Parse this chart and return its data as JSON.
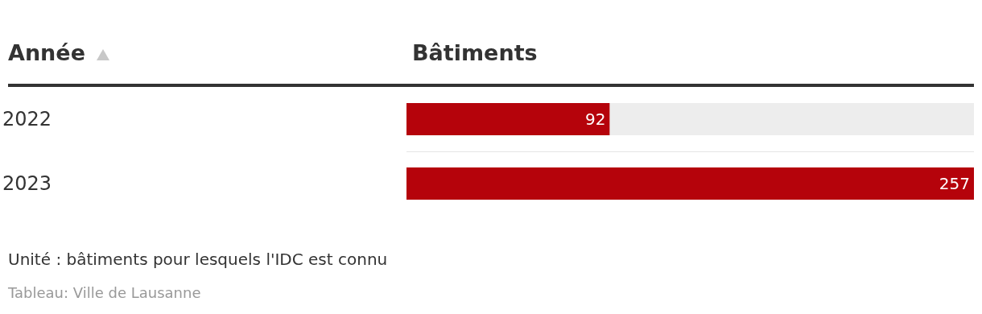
{
  "chart_data": {
    "type": "bar",
    "orientation": "horizontal",
    "ylabel": "Année",
    "xlabel": "Bâtiments",
    "categories": [
      "2022",
      "2023"
    ],
    "values": [
      92,
      257
    ],
    "color": "#b5030b",
    "data_labels": true,
    "grid": "y",
    "tick_labels": "y",
    "annotations": [
      "Unité : bâtiments pour lesquels l'IDC est connu",
      "Tableau: Ville de Lausanne"
    ]
  }
}
